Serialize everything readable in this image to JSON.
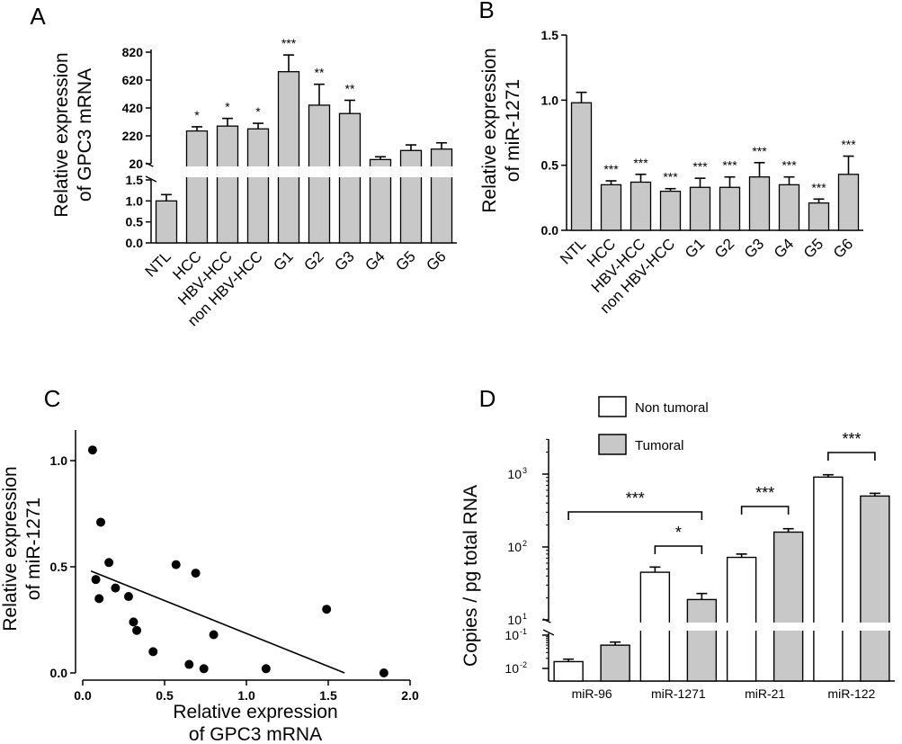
{
  "chart_data": [
    {
      "panel": "A",
      "type": "bar",
      "ylabel": [
        "Relative expression",
        "of GPC3 mRNA"
      ],
      "categories": [
        "NTL",
        "HCC",
        "HBV-HCC",
        "non HBV-HCC",
        "G1",
        "G2",
        "G3",
        "G4",
        "G5",
        "G6"
      ],
      "values": [
        1.0,
        255,
        290,
        270,
        680,
        440,
        380,
        50,
        115,
        125
      ],
      "errors": [
        0.15,
        30,
        55,
        40,
        120,
        150,
        95,
        20,
        40,
        45
      ],
      "significance": [
        "",
        "*",
        "*",
        "*",
        "***",
        "**",
        "**",
        "",
        "",
        ""
      ],
      "segment_lower": {
        "ylim": [
          0,
          1.5
        ],
        "ticks": [
          "0.0",
          "0.5",
          "1.0",
          "1.5"
        ]
      },
      "segment_upper": {
        "ylim": [
          20,
          880
        ],
        "ticks": [
          "20",
          "220",
          "420",
          "620",
          "820"
        ]
      },
      "bar_color": "#c8c8c8"
    },
    {
      "panel": "B",
      "type": "bar",
      "ylabel": [
        "Relative expression",
        "of miR-1271"
      ],
      "categories": [
        "NTL",
        "HCC",
        "HBV-HCC",
        "non HBV-HCC",
        "G1",
        "G2",
        "G3",
        "G4",
        "G5",
        "G6"
      ],
      "values": [
        0.98,
        0.35,
        0.37,
        0.3,
        0.33,
        0.33,
        0.41,
        0.35,
        0.21,
        0.43
      ],
      "errors": [
        0.08,
        0.03,
        0.06,
        0.02,
        0.07,
        0.08,
        0.11,
        0.06,
        0.03,
        0.14
      ],
      "significance": [
        "",
        "***",
        "***",
        "***",
        "***",
        "***",
        "***",
        "***",
        "***",
        "***"
      ],
      "ylim": [
        0,
        1.5
      ],
      "yticks": [
        "0.0",
        "0.5",
        "1.0",
        "1.5"
      ],
      "bar_color": "#c8c8c8"
    },
    {
      "panel": "C",
      "type": "scatter",
      "xlabel": [
        "Relative expression",
        "of GPC3 mRNA"
      ],
      "ylabel": [
        "Relative expression",
        "of miR-1271"
      ],
      "xlim": [
        0,
        2.0
      ],
      "ylim": [
        0,
        1.2
      ],
      "xticks": [
        "0.0",
        "0.5",
        "1.0",
        "1.5",
        "2.0"
      ],
      "yticks": [
        "0.0",
        "0.5",
        "1.0"
      ],
      "points": [
        {
          "x": 0.06,
          "y": 1.05
        },
        {
          "x": 0.11,
          "y": 0.71
        },
        {
          "x": 0.16,
          "y": 0.52
        },
        {
          "x": 0.08,
          "y": 0.44
        },
        {
          "x": 0.2,
          "y": 0.4
        },
        {
          "x": 0.28,
          "y": 0.36
        },
        {
          "x": 0.1,
          "y": 0.35
        },
        {
          "x": 0.31,
          "y": 0.24
        },
        {
          "x": 0.33,
          "y": 0.2
        },
        {
          "x": 0.57,
          "y": 0.51
        },
        {
          "x": 0.69,
          "y": 0.47
        },
        {
          "x": 0.8,
          "y": 0.18
        },
        {
          "x": 0.43,
          "y": 0.1
        },
        {
          "x": 0.65,
          "y": 0.04
        },
        {
          "x": 0.74,
          "y": 0.02
        },
        {
          "x": 1.12,
          "y": 0.02
        },
        {
          "x": 1.49,
          "y": 0.3
        },
        {
          "x": 1.84,
          "y": 0.0
        }
      ],
      "fit_line": {
        "x": [
          0.05,
          1.6
        ],
        "y": [
          0.48,
          0.0
        ]
      }
    },
    {
      "panel": "D",
      "type": "bar",
      "ylabel": [
        "Copies / pg total RNA"
      ],
      "categories": [
        "miR-96",
        "miR-1271",
        "miR-21",
        "miR-122"
      ],
      "series": [
        {
          "name": "Non tumoral",
          "values": [
            0.016,
            45,
            72,
            910
          ],
          "errors": [
            0.003,
            8,
            8,
            70
          ],
          "color": "#ffffff"
        },
        {
          "name": "Tumoral",
          "values": [
            0.05,
            19,
            160,
            500
          ],
          "errors": [
            0.012,
            4,
            18,
            45
          ],
          "color": "#c8c8c8"
        }
      ],
      "yscale": "log",
      "segment_lower": {
        "ylim": [
          0.01,
          0.1
        ]
      },
      "segment_upper": {
        "ylim": [
          10,
          3000
        ]
      },
      "yticks": [
        {
          "base": "10",
          "exp": "-2",
          "value": 0.01
        },
        {
          "base": "10",
          "exp": "-1",
          "value": 0.1
        },
        {
          "base": "10",
          "exp": "1",
          "value": 10
        },
        {
          "base": "10",
          "exp": "2",
          "value": 100
        },
        {
          "base": "10",
          "exp": "3",
          "value": 1000
        }
      ],
      "significance": [
        {
          "between": "miR-96 Non tumoral - miR-1271 Tumoral",
          "label": "***"
        },
        {
          "between": "miR-1271",
          "label": "*"
        },
        {
          "between": "miR-21",
          "label": "***"
        },
        {
          "between": "miR-122",
          "label": "***"
        }
      ],
      "legend": {
        "position": "top-left",
        "entries": [
          "Non tumoral",
          "Tumoral"
        ]
      }
    }
  ]
}
